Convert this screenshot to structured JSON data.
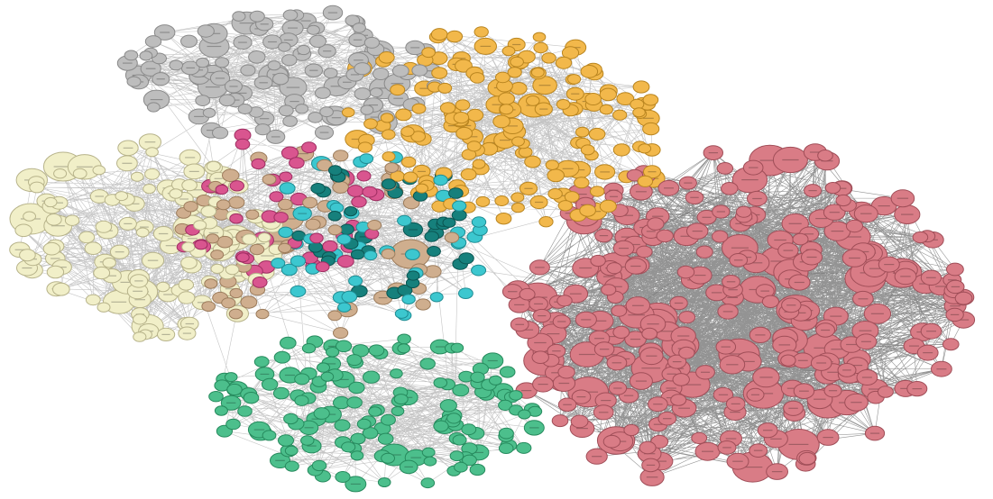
{
  "diagram": {
    "type": "network-graph",
    "node_labels_legible": false,
    "background": "#ffffff",
    "edge_color": "#5a5a5a",
    "communities": [
      {
        "id": "gray",
        "fill": "#bdbdbd",
        "stroke": "#8a8a8a",
        "region": "top"
      },
      {
        "id": "orange",
        "fill": "#f2b84b",
        "stroke": "#b98520",
        "region": "top-right"
      },
      {
        "id": "pink",
        "fill": "#d97c86",
        "stroke": "#a04e58",
        "region": "right"
      },
      {
        "id": "cream",
        "fill": "#f1efc8",
        "stroke": "#b7b38a",
        "region": "left"
      },
      {
        "id": "tan",
        "fill": "#cfae8e",
        "stroke": "#9c7c5c",
        "region": "center"
      },
      {
        "id": "magenta",
        "fill": "#d9558f",
        "stroke": "#9e2d61",
        "region": "center-left"
      },
      {
        "id": "cyan",
        "fill": "#3cc7cf",
        "stroke": "#1f8c93",
        "region": "center"
      },
      {
        "id": "teal",
        "fill": "#16807c",
        "stroke": "#0b5451",
        "region": "center"
      },
      {
        "id": "green",
        "fill": "#4cbf8c",
        "stroke": "#268a5d",
        "region": "bottom"
      }
    ]
  }
}
